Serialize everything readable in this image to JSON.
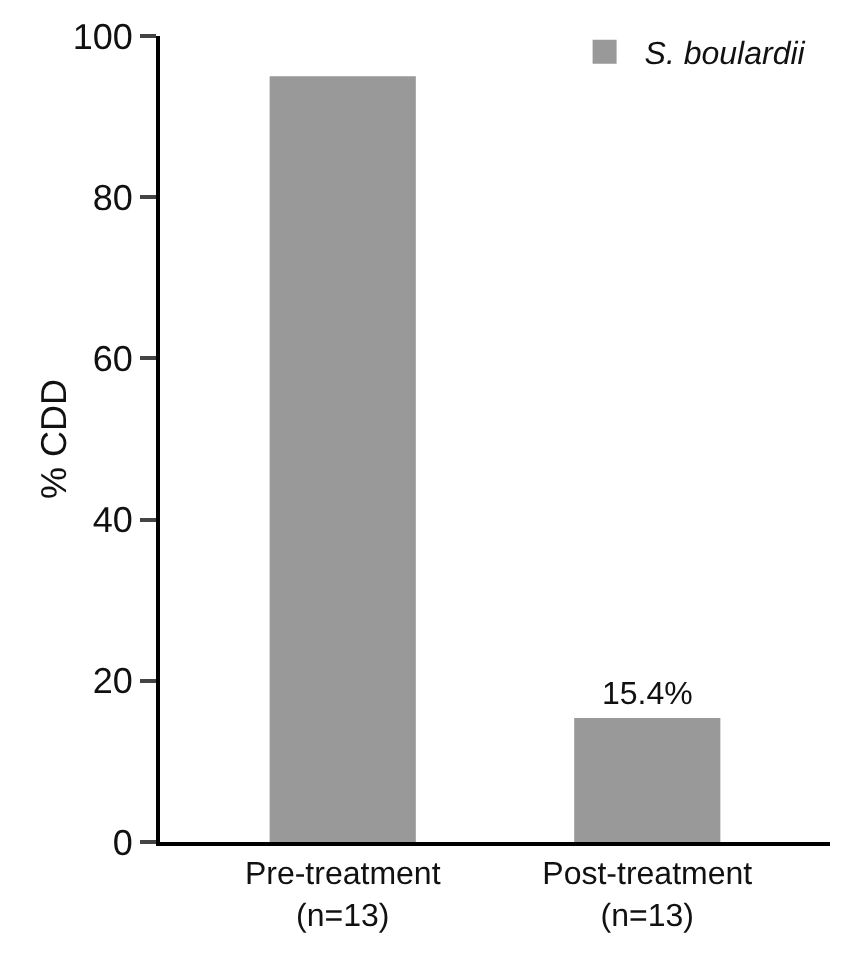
{
  "chart_data": {
    "type": "bar",
    "ylabel": "% CDD",
    "categories": [
      "Pre-treatment\n(n=13)",
      "Post-treatment\n(n=13)"
    ],
    "series": [
      {
        "name": "S. boulardii",
        "color": "#999999",
        "values": [
          95,
          15.4
        ],
        "value_labels": [
          null,
          "15.4%"
        ]
      }
    ],
    "ylim": [
      0,
      100
    ],
    "yticks": [
      0,
      20,
      40,
      60,
      80,
      100
    ],
    "grid": false,
    "legend": "top right"
  }
}
